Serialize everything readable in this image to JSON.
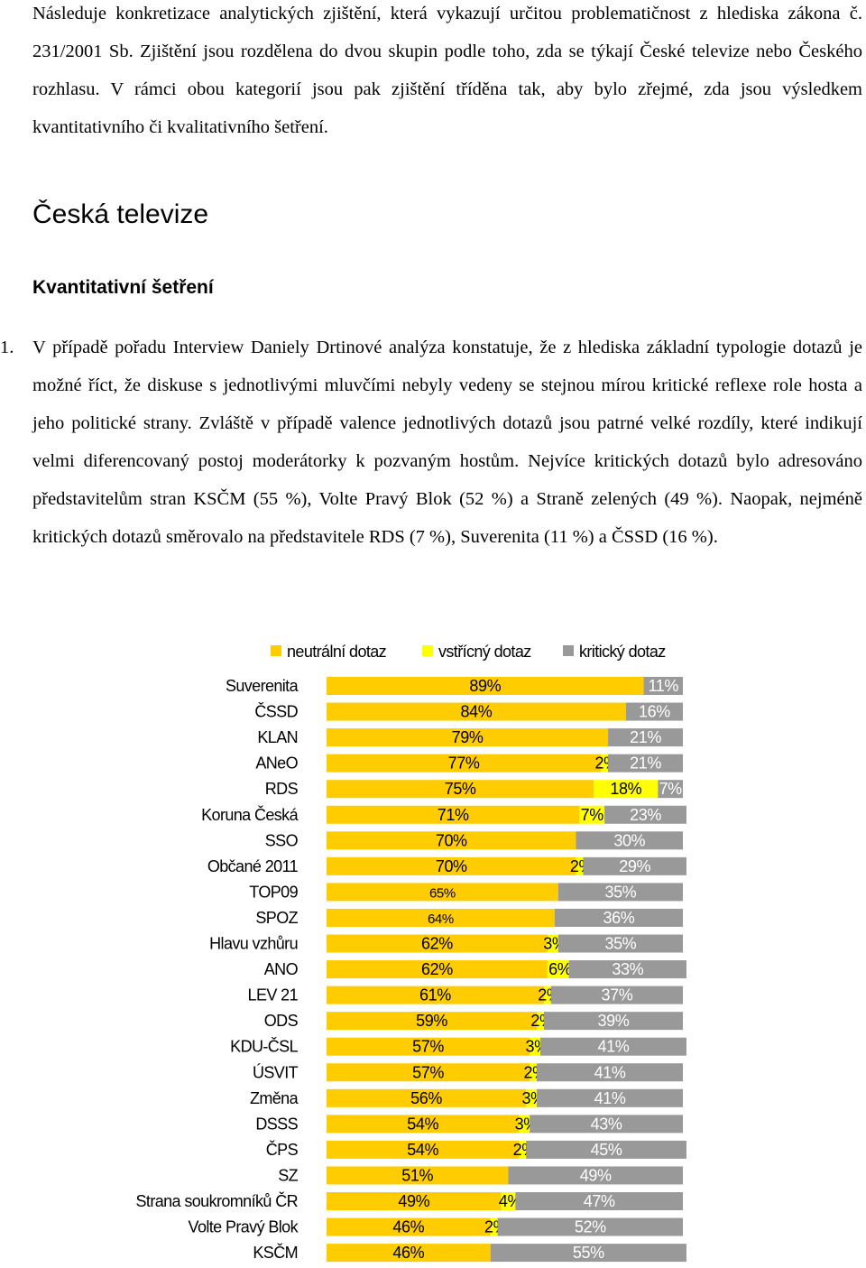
{
  "intro": "Následuje konkretizace analytických zjištění, která vykazují určitou problematičnost z hlediska zákona č. 231/2001 Sb. Zjištění jsou rozdělena do dvou skupin podle toho, zda se týkají České televize nebo Českého rozhlasu. V rámci obou kategorií jsou pak zjištění tříděna tak, aby bylo zřejmé, zda jsou výsledkem kvantitativního či kvalitativního šetření.",
  "heading1": "Česká televize",
  "heading2": "Kvantitativní šetření",
  "item1": {
    "number": "1.",
    "text": "V případě pořadu Interview Daniely Drtinové analýza konstatuje, že z hlediska základní typologie dotazů je možné říct, že diskuse s jednotlivými mluvčími nebyly vedeny se stejnou mírou kritické reflexe role hosta a jeho politické strany. Zvláště v případě valence jednotlivých dotazů jsou patrné velké rozdíly, které indikují velmi diferencovaný postoj moderátorky k pozvaným hostům. Nejvíce kritických dotazů bylo adresováno představitelům stran KSČM (55 %), Volte Pravý Blok (52 %) a Straně zelených (49 %). Naopak, nejméně kritických dotazů směrovalo na představitele RDS (7 %), Suverenita (11 %) a ČSSD (16 %)."
  },
  "chart_data": {
    "type": "bar",
    "stacked": true,
    "orientation": "horizontal",
    "legend_position": "top",
    "categories": [
      "Suverenita",
      "ČSSD",
      "KLAN",
      "ANeO",
      "RDS",
      "Koruna Česká",
      "SSO",
      "Občané 2011",
      "TOP09",
      "SPOZ",
      "Hlavu vzhůru",
      "ANO",
      "LEV 21",
      "ODS",
      "KDU-ČSL",
      "ÚSVIT",
      "Změna",
      "DSSS",
      "ČPS",
      "SZ",
      "Strana soukromníků ČR",
      "Volte Pravý Blok",
      "KSČM"
    ],
    "series": [
      {
        "name": "neutrální dotaz",
        "color": "#FFCC00",
        "values": [
          89,
          84,
          79,
          77,
          75,
          71,
          70,
          70,
          65,
          64,
          62,
          62,
          61,
          59,
          57,
          57,
          56,
          54,
          54,
          51,
          49,
          46,
          46
        ]
      },
      {
        "name": "vstřícný dotaz",
        "color": "#FFFF00",
        "values": [
          0,
          0,
          0,
          2,
          18,
          7,
          0,
          2,
          0,
          0,
          3,
          6,
          2,
          2,
          3,
          2,
          3,
          3,
          2,
          0,
          4,
          2,
          0
        ]
      },
      {
        "name": "kritický dotaz",
        "color": "#999999",
        "values": [
          11,
          16,
          21,
          21,
          7,
          23,
          30,
          29,
          35,
          36,
          35,
          33,
          37,
          39,
          41,
          41,
          41,
          43,
          45,
          49,
          47,
          52,
          55
        ]
      }
    ],
    "xlim": [
      0,
      100
    ],
    "grid": false
  }
}
